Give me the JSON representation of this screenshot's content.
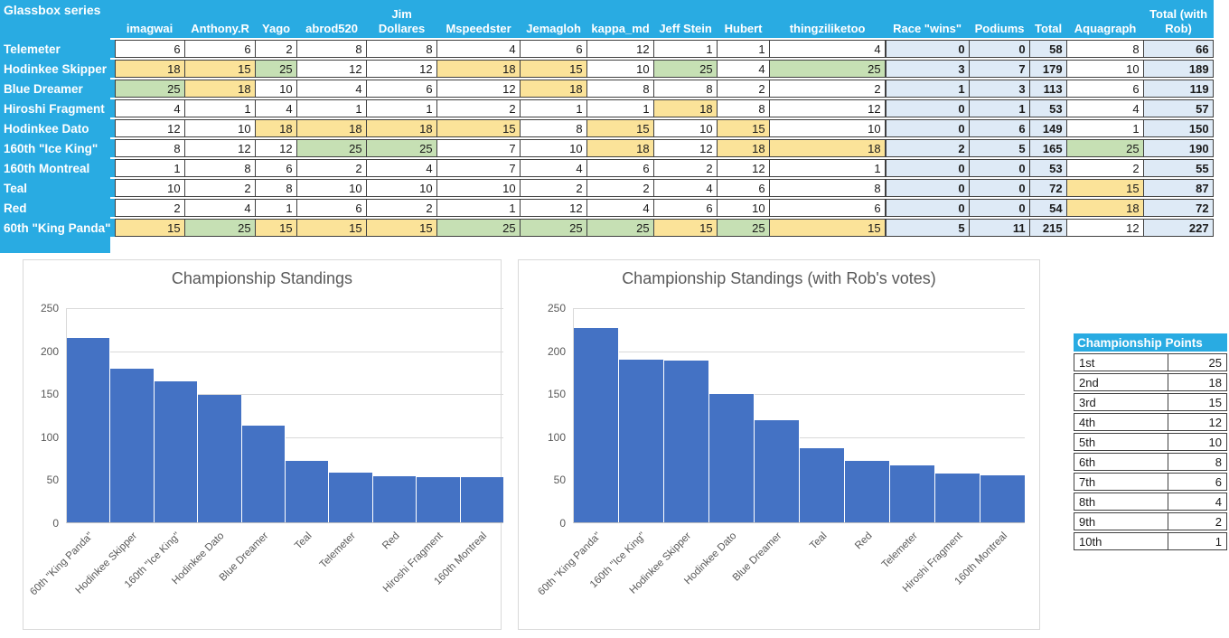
{
  "accent_colors": {
    "header_blue": "#29ABE2",
    "highlight_yellow": "#FBE399",
    "highlight_green": "#C6E0B4",
    "summary_blue": "#DEEAF6",
    "bar_blue": "#4472C4"
  },
  "table": {
    "title": "Glassbox series",
    "voter_columns": [
      "imagwai",
      "Anthony.R",
      "Yago",
      "abrod520",
      "Jim Dollares",
      "Mspeedster",
      "Jemagloh",
      "kappa_md",
      "Jeff Stein",
      "Hubert",
      "thingziliketoo"
    ],
    "summary_columns": [
      "Race \"wins\"",
      "Podiums",
      "Total",
      "Aquagraph",
      "Total (with Rob)"
    ],
    "rows": [
      {
        "name": "Telemeter",
        "votes": [
          6,
          6,
          2,
          8,
          8,
          4,
          6,
          12,
          1,
          1,
          4
        ],
        "hl": [
          "",
          "",
          "",
          "",
          "",
          "",
          "",
          "",
          "",
          "",
          ""
        ],
        "wins": 0,
        "podiums": 0,
        "total": 58,
        "aquagraph": 8,
        "aqua_hl": "",
        "total_rob": 66
      },
      {
        "name": "Hodinkee Skipper",
        "votes": [
          18,
          15,
          25,
          12,
          12,
          18,
          15,
          10,
          25,
          4,
          25
        ],
        "hl": [
          "y",
          "y",
          "g",
          "",
          "",
          "y",
          "y",
          "",
          "g",
          "",
          "g"
        ],
        "wins": 3,
        "podiums": 7,
        "total": 179,
        "aquagraph": 10,
        "aqua_hl": "",
        "total_rob": 189
      },
      {
        "name": "Blue Dreamer",
        "votes": [
          25,
          18,
          10,
          4,
          6,
          12,
          18,
          8,
          8,
          2,
          2
        ],
        "hl": [
          "g",
          "y",
          "",
          "",
          "",
          "",
          "y",
          "",
          "",
          "",
          ""
        ],
        "wins": 1,
        "podiums": 3,
        "total": 113,
        "aquagraph": 6,
        "aqua_hl": "",
        "total_rob": 119
      },
      {
        "name": "Hiroshi Fragment",
        "votes": [
          4,
          1,
          4,
          1,
          1,
          2,
          1,
          1,
          18,
          8,
          12
        ],
        "hl": [
          "",
          "",
          "",
          "",
          "",
          "",
          "",
          "",
          "y",
          "",
          ""
        ],
        "wins": 0,
        "podiums": 1,
        "total": 53,
        "aquagraph": 4,
        "aqua_hl": "",
        "total_rob": 57
      },
      {
        "name": "Hodinkee Dato",
        "votes": [
          12,
          10,
          18,
          18,
          18,
          15,
          8,
          15,
          10,
          15,
          10
        ],
        "hl": [
          "",
          "",
          "y",
          "y",
          "y",
          "y",
          "",
          "y",
          "",
          "y",
          ""
        ],
        "wins": 0,
        "podiums": 6,
        "total": 149,
        "aquagraph": 1,
        "aqua_hl": "",
        "total_rob": 150
      },
      {
        "name": "160th \"Ice King\"",
        "votes": [
          8,
          12,
          12,
          25,
          25,
          7,
          10,
          18,
          12,
          18,
          18
        ],
        "hl": [
          "",
          "",
          "",
          "g",
          "g",
          "",
          "",
          "y",
          "",
          "y",
          "y"
        ],
        "wins": 2,
        "podiums": 5,
        "total": 165,
        "aquagraph": 25,
        "aqua_hl": "g",
        "total_rob": 190
      },
      {
        "name": "160th Montreal",
        "votes": [
          1,
          8,
          6,
          2,
          4,
          7,
          4,
          6,
          2,
          12,
          1
        ],
        "hl": [
          "",
          "",
          "",
          "",
          "",
          "",
          "",
          "",
          "",
          "",
          ""
        ],
        "wins": 0,
        "podiums": 0,
        "total": 53,
        "aquagraph": 2,
        "aqua_hl": "",
        "total_rob": 55
      },
      {
        "name": "Teal",
        "votes": [
          10,
          2,
          8,
          10,
          10,
          10,
          2,
          2,
          4,
          6,
          8
        ],
        "hl": [
          "",
          "",
          "",
          "",
          "",
          "",
          "",
          "",
          "",
          "",
          ""
        ],
        "wins": 0,
        "podiums": 0,
        "total": 72,
        "aquagraph": 15,
        "aqua_hl": "y",
        "total_rob": 87
      },
      {
        "name": "Red",
        "votes": [
          2,
          4,
          1,
          6,
          2,
          1,
          12,
          4,
          6,
          10,
          6
        ],
        "hl": [
          "",
          "",
          "",
          "",
          "",
          "",
          "",
          "",
          "",
          "",
          ""
        ],
        "wins": 0,
        "podiums": 0,
        "total": 54,
        "aquagraph": 18,
        "aqua_hl": "y",
        "total_rob": 72
      },
      {
        "name": "60th \"King Panda\"",
        "votes": [
          15,
          25,
          15,
          15,
          15,
          25,
          25,
          25,
          15,
          25,
          15
        ],
        "hl": [
          "y",
          "g",
          "y",
          "y",
          "y",
          "g",
          "g",
          "g",
          "y",
          "g",
          "y"
        ],
        "wins": 5,
        "podiums": 11,
        "total": 215,
        "aquagraph": 12,
        "aqua_hl": "",
        "total_rob": 227
      }
    ]
  },
  "chart_data": [
    {
      "type": "bar",
      "title": "Championship Standings",
      "categories": [
        "60th \"King Panda\"",
        "Hodinkee Skipper",
        "160th \"Ice King\"",
        "Hodinkee Dato",
        "Blue Dreamer",
        "Teal",
        "Telemeter",
        "Red",
        "Hiroshi Fragment",
        "160th Montreal"
      ],
      "values": [
        215,
        179,
        165,
        149,
        113,
        72,
        58,
        54,
        53,
        53
      ],
      "xlabel": "",
      "ylabel": "",
      "ylim": [
        0,
        250
      ],
      "yticks": [
        0,
        50,
        100,
        150,
        200,
        250
      ],
      "grid": true,
      "legend": "none",
      "bar_color": "#4472C4"
    },
    {
      "type": "bar",
      "title": "Championship Standings (with Rob's votes)",
      "categories": [
        "60th \"King Panda\"",
        "160th \"Ice King\"",
        "Hodinkee Skipper",
        "Hodinkee Dato",
        "Blue Dreamer",
        "Teal",
        "Red",
        "Telemeter",
        "Hiroshi Fragment",
        "160th Montreal"
      ],
      "values": [
        227,
        190,
        189,
        150,
        119,
        87,
        72,
        66,
        57,
        55
      ],
      "xlabel": "",
      "ylabel": "",
      "ylim": [
        0,
        250
      ],
      "yticks": [
        0,
        50,
        100,
        150,
        200,
        250
      ],
      "grid": true,
      "legend": "none",
      "bar_color": "#4472C4"
    }
  ],
  "points_table": {
    "title": "Championship Points",
    "rows": [
      {
        "position": "1st",
        "points": 25
      },
      {
        "position": "2nd",
        "points": 18
      },
      {
        "position": "3rd",
        "points": 15
      },
      {
        "position": "4th",
        "points": 12
      },
      {
        "position": "5th",
        "points": 10
      },
      {
        "position": "6th",
        "points": 8
      },
      {
        "position": "7th",
        "points": 6
      },
      {
        "position": "8th",
        "points": 4
      },
      {
        "position": "9th",
        "points": 2
      },
      {
        "position": "10th",
        "points": 1
      }
    ]
  }
}
